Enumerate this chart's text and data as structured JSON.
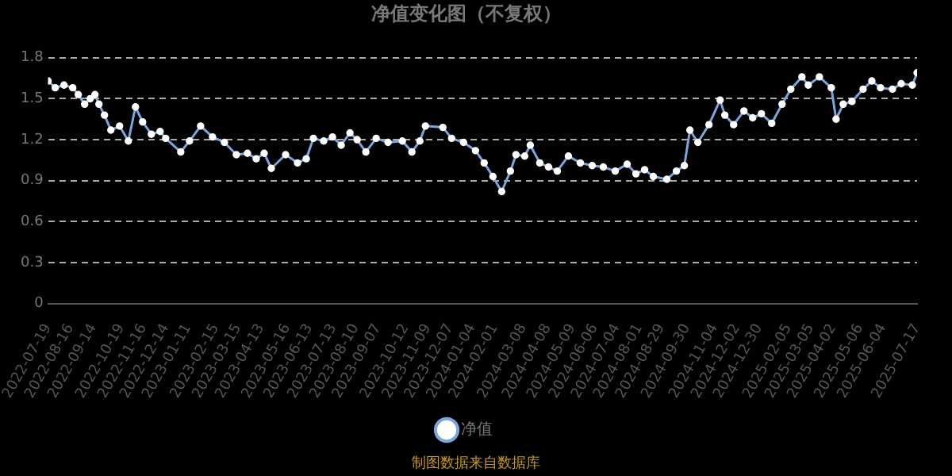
{
  "chart_data": {
    "type": "line",
    "title": "净值变化图（不复权）",
    "x": [
      "2022-07-19",
      "2022-07-28",
      "2022-08-08",
      "2022-08-19",
      "2022-08-26",
      "2022-09-03",
      "2022-09-10",
      "2022-09-16",
      "2022-09-21",
      "2022-09-28",
      "2022-10-06",
      "2022-10-17",
      "2022-10-28",
      "2022-11-06",
      "2022-11-15",
      "2022-11-26",
      "2022-12-07",
      "2022-12-14",
      "2023-01-02",
      "2023-01-13",
      "2023-01-27",
      "2023-02-11",
      "2023-02-26",
      "2023-03-13",
      "2023-03-27",
      "2023-04-07",
      "2023-04-17",
      "2023-04-26",
      "2023-05-14",
      "2023-05-29",
      "2023-06-09",
      "2023-06-18",
      "2023-07-01",
      "2023-07-12",
      "2023-07-23",
      "2023-08-03",
      "2023-08-12",
      "2023-08-23",
      "2023-09-05",
      "2023-09-20",
      "2023-10-08",
      "2023-10-20",
      "2023-10-30",
      "2023-11-06",
      "2023-11-28",
      "2023-12-09",
      "2023-12-24",
      "2024-01-08",
      "2024-01-19",
      "2024-01-30",
      "2024-02-10",
      "2024-02-21",
      "2024-02-28",
      "2024-03-10",
      "2024-03-17",
      "2024-03-29",
      "2024-04-09",
      "2024-04-20",
      "2024-05-04",
      "2024-05-19",
      "2024-06-03",
      "2024-06-17",
      "2024-07-02",
      "2024-07-17",
      "2024-07-28",
      "2024-08-08",
      "2024-08-19",
      "2024-09-05",
      "2024-09-17",
      "2024-09-27",
      "2024-10-04",
      "2024-10-14",
      "2024-10-28",
      "2024-11-11",
      "2024-11-17",
      "2024-11-28",
      "2024-12-11",
      "2024-12-22",
      "2025-01-02",
      "2025-01-15",
      "2025-01-28",
      "2025-02-08",
      "2025-02-22",
      "2025-03-02",
      "2025-03-16",
      "2025-03-31",
      "2025-04-06",
      "2025-04-15",
      "2025-04-26",
      "2025-05-10",
      "2025-05-21",
      "2025-06-01",
      "2025-06-16",
      "2025-06-27",
      "2025-07-11",
      "2025-07-17"
    ],
    "series": [
      {
        "name": "净值",
        "color": "#7aa6dd",
        "values": [
          1.63,
          1.58,
          1.6,
          1.58,
          1.53,
          1.46,
          1.5,
          1.53,
          1.46,
          1.38,
          1.27,
          1.3,
          1.19,
          1.44,
          1.33,
          1.24,
          1.26,
          1.21,
          1.11,
          1.19,
          1.3,
          1.22,
          1.18,
          1.09,
          1.1,
          1.06,
          1.1,
          0.99,
          1.09,
          1.03,
          1.06,
          1.21,
          1.19,
          1.22,
          1.16,
          1.25,
          1.2,
          1.11,
          1.21,
          1.18,
          1.19,
          1.11,
          1.19,
          1.3,
          1.29,
          1.21,
          1.18,
          1.12,
          1.03,
          0.93,
          0.82,
          0.97,
          1.09,
          1.08,
          1.16,
          1.03,
          1.0,
          0.97,
          1.08,
          1.03,
          1.01,
          1.0,
          0.97,
          1.02,
          0.95,
          0.98,
          0.93,
          0.91,
          0.97,
          1.01,
          1.27,
          1.18,
          1.31,
          1.49,
          1.38,
          1.31,
          1.41,
          1.36,
          1.39,
          1.32,
          1.46,
          1.57,
          1.66,
          1.6,
          1.66,
          1.58,
          1.35,
          1.46,
          1.48,
          1.57,
          1.63,
          1.58,
          1.57,
          1.61,
          1.6,
          1.69
        ]
      }
    ],
    "xlim": [
      "2022-07-19",
      "2025-07-17"
    ],
    "xticks": [
      "2022-07-19",
      "2022-08-16",
      "2022-09-14",
      "2022-10-19",
      "2022-11-16",
      "2022-12-14",
      "2023-01-11",
      "2023-02-15",
      "2023-03-15",
      "2023-04-13",
      "2023-05-16",
      "2023-06-13",
      "2023-07-13",
      "2023-08-10",
      "2023-09-07",
      "2023-10-12",
      "2023-11-09",
      "2023-12-07",
      "2024-01-04",
      "2024-02-01",
      "2024-03-08",
      "2024-04-08",
      "2024-05-09",
      "2024-06-06",
      "2024-07-04",
      "2024-08-01",
      "2024-08-29",
      "2024-09-30",
      "2024-11-04",
      "2024-12-02",
      "2024-12-30",
      "2025-02-05",
      "2025-03-05",
      "2025-04-02",
      "2025-05-06",
      "2025-06-04",
      "2025-07-17"
    ],
    "ylim": [
      0,
      1.8
    ],
    "yticks": [
      0,
      0.3,
      0.6,
      0.9,
      1.2,
      1.5,
      1.8
    ],
    "grid": "y",
    "legend": "bottom",
    "marker": "circle",
    "line_style": "solid",
    "annotations": [
      "制图数据来自数据库"
    ]
  }
}
